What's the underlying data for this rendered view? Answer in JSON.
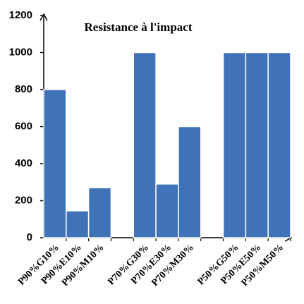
{
  "chart_data": {
    "type": "bar",
    "title": "Resistance à l'impact",
    "categories": [
      "P90%G10%",
      "P90%E10%",
      "P90%M10%",
      null,
      "P70%G30%",
      "P70%E30%",
      "P70%M30%",
      null,
      "P50%G50%",
      "P50%E50%",
      "P50%M50%"
    ],
    "values": [
      800,
      145,
      270,
      null,
      1000,
      290,
      600,
      null,
      1000,
      1000,
      1000
    ],
    "color": "#3f72b6",
    "ylim": [
      0,
      1200
    ],
    "yticks": [
      0,
      200,
      400,
      600,
      800,
      1000,
      1200
    ],
    "grid": false
  }
}
